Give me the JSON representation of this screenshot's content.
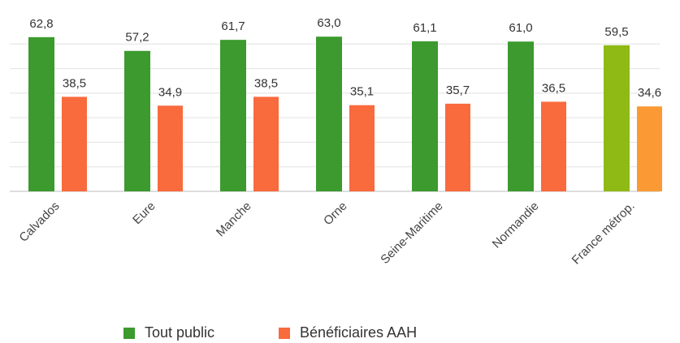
{
  "chart_data": {
    "type": "bar",
    "categories": [
      "Calvados",
      "Eure",
      "Manche",
      "Orne",
      "Seine-Maritime",
      "Normandie",
      "France métrop."
    ],
    "series": [
      {
        "name": "Tout public",
        "color": "#3c9a2e",
        "colors": [
          "#3c9a2e",
          "#3c9a2e",
          "#3c9a2e",
          "#3c9a2e",
          "#3c9a2e",
          "#3c9a2e",
          "#8fb915"
        ],
        "values": [
          62.8,
          57.2,
          61.7,
          63.0,
          61.1,
          61.0,
          59.5
        ],
        "value_labels": [
          "62,8",
          "57,2",
          "61,7",
          "63,0",
          "61,1",
          "61,0",
          "59,5"
        ]
      },
      {
        "name": "Bénéficiaires AAH",
        "color": "#f96a3d",
        "colors": [
          "#f96a3d",
          "#f96a3d",
          "#f96a3d",
          "#f96a3d",
          "#f96a3d",
          "#f96a3d",
          "#fb9a35"
        ],
        "values": [
          38.5,
          34.9,
          38.5,
          35.1,
          35.7,
          36.5,
          34.6
        ],
        "value_labels": [
          "38,5",
          "34,9",
          "38,5",
          "35,1",
          "35,7",
          "36,5",
          "34,6"
        ]
      }
    ],
    "ylim": [
      0,
      70
    ],
    "yticks": [
      0,
      10,
      20,
      30,
      40,
      50,
      60
    ],
    "ytick_labels": false,
    "grid": true,
    "legend": "bottom"
  }
}
